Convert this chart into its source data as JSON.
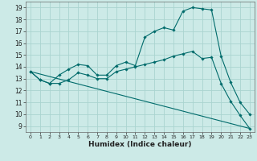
{
  "xlabel": "Humidex (Indice chaleur)",
  "xlim": [
    -0.5,
    23.5
  ],
  "ylim": [
    8.5,
    19.5
  ],
  "xticks": [
    0,
    1,
    2,
    3,
    4,
    5,
    6,
    7,
    8,
    9,
    10,
    11,
    12,
    13,
    14,
    15,
    16,
    17,
    18,
    19,
    20,
    21,
    22,
    23
  ],
  "yticks": [
    9,
    10,
    11,
    12,
    13,
    14,
    15,
    16,
    17,
    18,
    19
  ],
  "bg_color": "#cceae7",
  "grid_color": "#aad4d0",
  "line_color": "#006b6b",
  "line1_x": [
    0,
    1,
    2,
    3,
    4,
    5,
    6,
    7,
    8,
    9,
    10,
    11,
    12,
    13,
    14,
    15,
    16,
    17,
    18,
    19,
    20,
    21,
    22,
    23
  ],
  "line1_y": [
    13.6,
    12.9,
    12.6,
    13.3,
    13.8,
    14.2,
    14.1,
    13.3,
    13.3,
    14.1,
    14.4,
    14.1,
    16.5,
    17.0,
    17.3,
    17.1,
    18.7,
    19.0,
    18.9,
    18.8,
    14.9,
    12.7,
    11.0,
    10.0
  ],
  "line2_x": [
    0,
    1,
    2,
    3,
    4,
    5,
    6,
    7,
    8,
    9,
    10,
    11,
    12,
    13,
    14,
    15,
    16,
    17,
    18,
    19,
    20,
    21,
    22,
    23
  ],
  "line2_y": [
    13.6,
    12.9,
    12.6,
    12.6,
    12.9,
    13.5,
    13.3,
    13.0,
    13.0,
    13.6,
    13.8,
    14.0,
    14.2,
    14.4,
    14.6,
    14.9,
    15.1,
    15.3,
    14.7,
    14.8,
    12.6,
    11.1,
    9.9,
    8.8
  ],
  "line3_x": [
    0,
    23
  ],
  "line3_y": [
    13.6,
    8.8
  ]
}
